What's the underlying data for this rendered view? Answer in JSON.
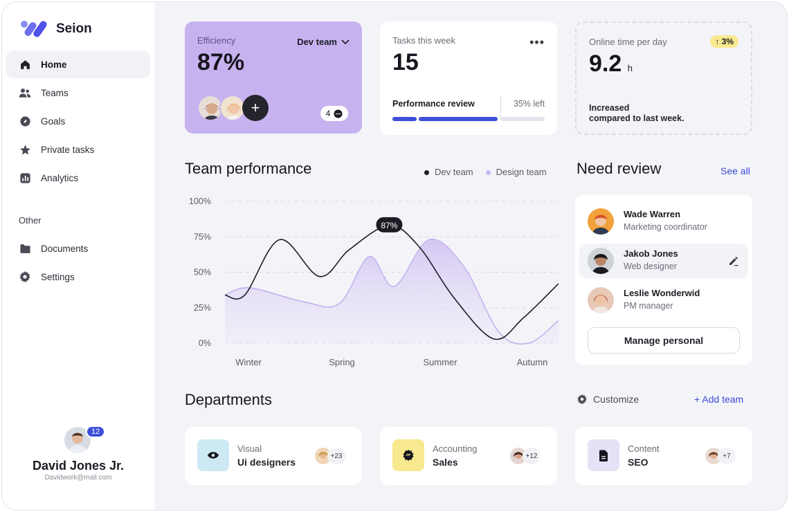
{
  "app": {
    "name": "Seion"
  },
  "sidebar": {
    "items": [
      {
        "label": "Home",
        "icon": "home-icon"
      },
      {
        "label": "Teams",
        "icon": "users-icon"
      },
      {
        "label": "Goals",
        "icon": "compass-icon"
      },
      {
        "label": "Private tasks",
        "icon": "star-icon"
      },
      {
        "label": "Analytics",
        "icon": "chart-icon"
      }
    ],
    "other_label": "Other",
    "other_items": [
      {
        "label": "Documents",
        "icon": "folder-icon"
      },
      {
        "label": "Settings",
        "icon": "gear-icon"
      }
    ],
    "profile": {
      "name": "David Jones Jr.",
      "email": "Davidwork@mail.com",
      "notifications": "12"
    }
  },
  "efficiency": {
    "label": "Efficiency",
    "value": "87%",
    "team": "Dev team",
    "comments": "4"
  },
  "tasks": {
    "label": "Tasks this week",
    "value": "15",
    "review_label": "Performance review",
    "review_left": "35% left",
    "progress": 0.65
  },
  "online": {
    "label": "Online time per day",
    "value": "9.2",
    "unit": "h",
    "change": "3%",
    "note_line1": "Increased",
    "note_line2": "compared to last week."
  },
  "team_performance": {
    "title": "Team performance",
    "chart_data": {
      "type": "line",
      "categories": [
        "Winter",
        "Spring",
        "Summer",
        "Autumn"
      ],
      "y_ticks": [
        "100%",
        "75%",
        "50%",
        "25%",
        "0%"
      ],
      "ylim": [
        0,
        100
      ],
      "series": [
        {
          "name": "Dev team",
          "color": "#1c1c24",
          "x": [
            0,
            0.2,
            0.55,
            0.95,
            1.25,
            1.65,
            1.95,
            2.3,
            2.7,
            3.0,
            3.35
          ],
          "values": [
            34,
            34,
            73,
            47,
            66,
            83,
            68,
            32,
            3,
            18,
            42
          ]
        },
        {
          "name": "Design team",
          "color": "#c9b8f0",
          "x": [
            0,
            0.25,
            0.8,
            1.15,
            1.45,
            1.7,
            2.05,
            2.4,
            2.75,
            3.05,
            3.35
          ],
          "values": [
            34,
            39,
            29,
            28,
            61,
            40,
            73,
            54,
            8,
            0,
            16
          ]
        }
      ],
      "annotation": {
        "series": "Dev team",
        "label": "87%"
      }
    }
  },
  "review": {
    "title": "Need review",
    "see_all": "See all",
    "people": [
      {
        "name": "Wade Warren",
        "role": "Marketing coordinator"
      },
      {
        "name": "Jakob Jones",
        "role": "Web designer"
      },
      {
        "name": "Leslie Wonderwid",
        "role": "PM manager"
      }
    ],
    "button": "Manage personal"
  },
  "departments": {
    "title": "Departments",
    "customize": "Customize",
    "add_team": "+ Add team",
    "items": [
      {
        "category": "Visual",
        "name": "Ui designers",
        "count": "+23",
        "icon": "eye-icon",
        "color": "#cde9f3"
      },
      {
        "category": "Accounting",
        "name": "Sales",
        "count": "+12",
        "icon": "badge-icon",
        "color": "#f8e98e"
      },
      {
        "category": "Content",
        "name": "SEO",
        "count": "+7",
        "icon": "document-icon",
        "color": "#e4e2f6"
      }
    ]
  }
}
